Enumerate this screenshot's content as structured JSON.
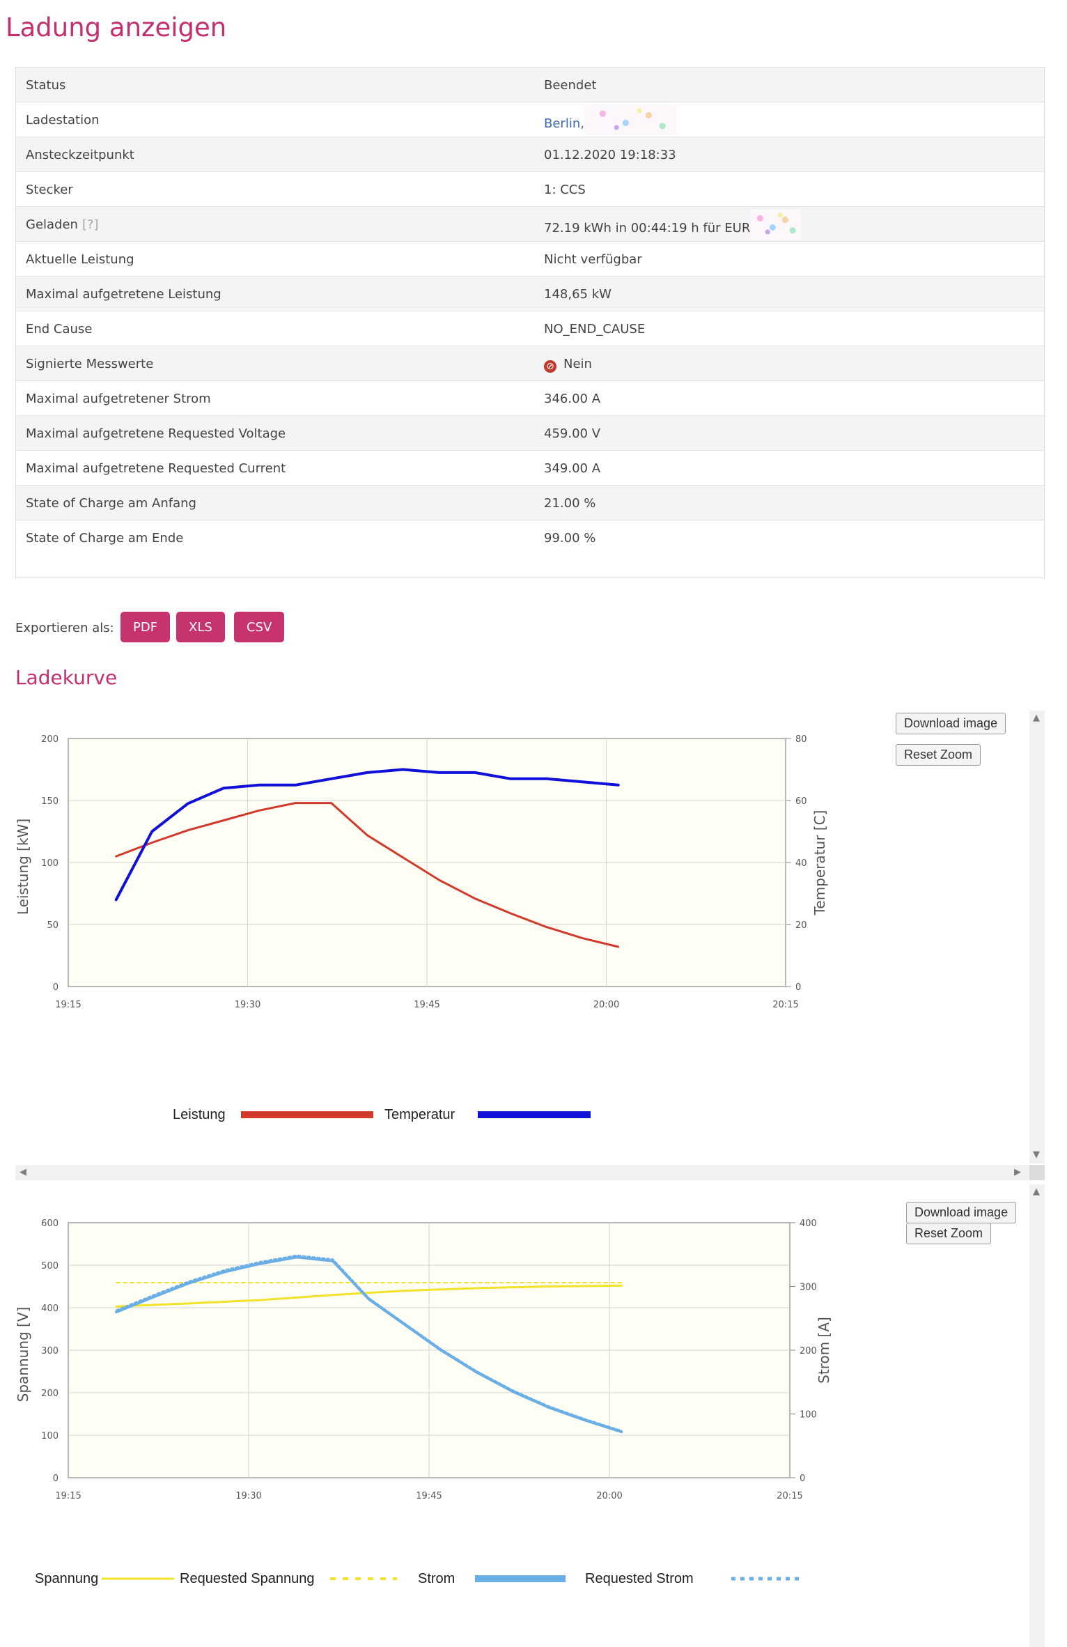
{
  "page": {
    "title": "Ladung anzeigen"
  },
  "info": {
    "rows": [
      {
        "label": "Status",
        "value": "Beendet"
      },
      {
        "label": "Ladestation",
        "value": "Berlin,"
      },
      {
        "label": "Ansteckzeitpunkt",
        "value": "01.12.2020 19:18:33"
      },
      {
        "label": "Stecker",
        "value": "1: CCS"
      },
      {
        "label": "Geladen",
        "help": "[?]",
        "value": "72.19 kWh in 00:44:19 h für EUR"
      },
      {
        "label": "Aktuelle Leistung",
        "value": "Nicht verfügbar"
      },
      {
        "label": "Maximal aufgetretene Leistung",
        "value": "148,65 kW"
      },
      {
        "label": "End Cause",
        "value": "NO_END_CAUSE"
      },
      {
        "label": "Signierte Messwerte",
        "value": "Nein"
      },
      {
        "label": "Maximal aufgetretener Strom",
        "value": "346.00 A"
      },
      {
        "label": "Maximal aufgetretene Requested Voltage",
        "value": "459.00 V"
      },
      {
        "label": "Maximal aufgetretene Requested Current",
        "value": "349.00 A"
      },
      {
        "label": "State of Charge am Anfang",
        "value": "21.00 %"
      },
      {
        "label": "State of Charge am Ende",
        "value": "99.00 %"
      }
    ]
  },
  "export": {
    "label": "Exportieren als:",
    "pdf": "PDF",
    "xls": "XLS",
    "csv": "CSV"
  },
  "charts_section": {
    "title": "Ladekurve",
    "download_label": "Download image",
    "reset_label": "Reset Zoom"
  },
  "colors": {
    "accent": "#c2306f",
    "leistung": "#d13a2a",
    "temperatur": "#1010d8",
    "spannung": "#f2e22a",
    "strom": "#6aaee6",
    "plot_bg": "#fefef5"
  },
  "chart_data": [
    {
      "type": "line",
      "x": [
        "19:19",
        "19:22",
        "19:25",
        "19:28",
        "19:31",
        "19:34",
        "19:37",
        "19:40",
        "19:43",
        "19:46",
        "19:49",
        "19:52",
        "19:55",
        "19:58",
        "20:01"
      ],
      "x_ticks": [
        "19:15",
        "19:30",
        "19:45",
        "20:00",
        "20:15"
      ],
      "xlim": [
        "19:15",
        "20:15"
      ],
      "ylabel": "Leistung [kW]",
      "ylim": [
        0,
        200
      ],
      "y_ticks": [
        "0",
        "50",
        "100",
        "150",
        "200"
      ],
      "y2label": "Temperatur [C]",
      "y2lim": [
        0,
        80
      ],
      "y2_ticks": [
        "0",
        "20",
        "40",
        "60",
        "80"
      ],
      "series": [
        {
          "name": "Leistung",
          "axis": "left",
          "x": [
            "19:19",
            "19:22",
            "19:25",
            "19:28",
            "19:31",
            "19:34",
            "19:37",
            "19:40",
            "19:43",
            "19:46",
            "19:49",
            "19:52",
            "19:55",
            "19:58",
            "20:01"
          ],
          "values": [
            105,
            116,
            126,
            134,
            142,
            148,
            148,
            122,
            104,
            86,
            71,
            59,
            48,
            39,
            32
          ]
        },
        {
          "name": "Temperatur",
          "axis": "right",
          "x": [
            "19:19",
            "19:22",
            "19:25",
            "19:28",
            "19:31",
            "19:34",
            "19:37",
            "19:40",
            "19:43",
            "19:46",
            "19:49",
            "19:52",
            "19:55",
            "19:58",
            "20:01"
          ],
          "values": [
            28,
            50,
            59,
            64,
            65,
            65,
            67,
            69,
            70,
            69,
            69,
            67,
            67,
            66,
            65
          ]
        }
      ],
      "grid": true,
      "legend": "bottom"
    },
    {
      "type": "line",
      "x_ticks": [
        "19:15",
        "19:30",
        "19:45",
        "20:00",
        "20:15"
      ],
      "xlim": [
        "19:15",
        "20:15"
      ],
      "ylabel": "Spannung [V]",
      "ylim": [
        0,
        600
      ],
      "y_ticks": [
        "0",
        "100",
        "200",
        "300",
        "400",
        "500",
        "600"
      ],
      "y2label": "Strom [A]",
      "y2lim": [
        0,
        400
      ],
      "y2_ticks": [
        "0",
        "100",
        "200",
        "300",
        "400"
      ],
      "series": [
        {
          "name": "Spannung",
          "axis": "left",
          "x": [
            "19:19",
            "19:25",
            "19:31",
            "19:37",
            "19:43",
            "19:49",
            "19:55",
            "20:01"
          ],
          "values": [
            403,
            410,
            418,
            430,
            440,
            446,
            450,
            452
          ]
        },
        {
          "name": "Requested Spannung",
          "axis": "left",
          "x": [
            "19:19",
            "20:01"
          ],
          "values": [
            459,
            459
          ]
        },
        {
          "name": "Strom",
          "axis": "right",
          "x": [
            "19:19",
            "19:22",
            "19:25",
            "19:28",
            "19:31",
            "19:34",
            "19:37",
            "19:40",
            "19:43",
            "19:46",
            "19:49",
            "19:52",
            "19:55",
            "19:58",
            "20:01"
          ],
          "values": [
            260,
            283,
            305,
            323,
            336,
            346,
            340,
            280,
            240,
            200,
            165,
            135,
            110,
            90,
            72
          ]
        },
        {
          "name": "Requested Strom",
          "axis": "right",
          "x": [
            "19:19",
            "19:22",
            "19:25",
            "19:28",
            "19:31",
            "19:34",
            "19:37",
            "19:40",
            "19:43",
            "19:46",
            "19:49",
            "19:52",
            "19:55",
            "19:58",
            "20:01"
          ],
          "values": [
            263,
            286,
            308,
            326,
            339,
            349,
            343,
            282,
            242,
            202,
            167,
            137,
            112,
            92,
            74
          ]
        }
      ],
      "grid": true,
      "legend": "bottom"
    }
  ]
}
